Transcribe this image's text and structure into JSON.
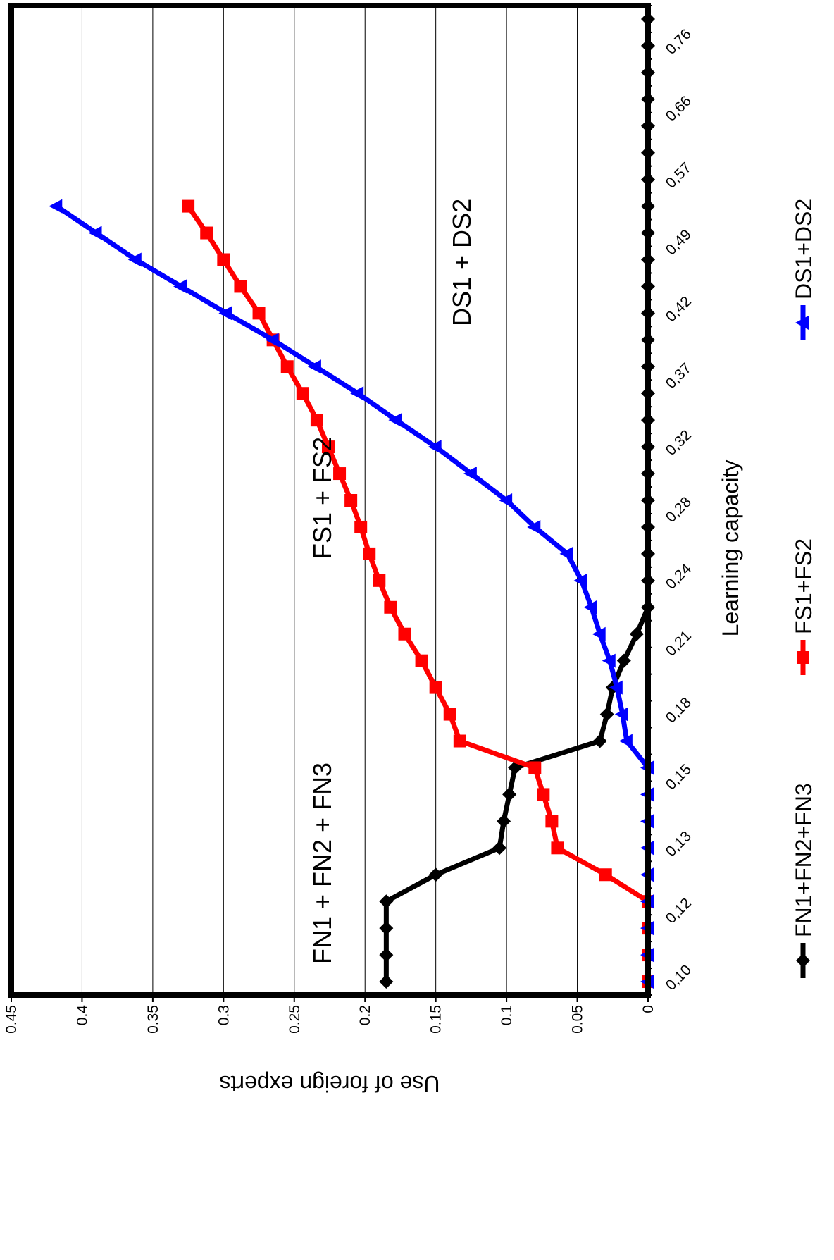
{
  "chart_data": {
    "type": "line",
    "title": "",
    "xlabel": "Learning capacity",
    "ylabel": "Use of foreign experts",
    "ylim": [
      0,
      0.45
    ],
    "yticks": [
      "0",
      "0.05",
      "0.1",
      "0.15",
      "0.2",
      "0.25",
      "0.3",
      "0.35",
      "0.4",
      "0.45"
    ],
    "xtick_labels": [
      "0,10",
      "0,12",
      "0,13",
      "0,15",
      "0,18",
      "0,21",
      "0,24",
      "0,28",
      "0,32",
      "0,37",
      "0,42",
      "0,49",
      "0,57",
      "0,66",
      "0,76"
    ],
    "grid": "horizontal",
    "legend_position": "bottom",
    "x_count": 37,
    "series": [
      {
        "name": "FN1+FN2+FN3",
        "color": "#000000",
        "marker": "diamond",
        "values": [
          0.185,
          0.185,
          0.185,
          0.185,
          0.15,
          0.105,
          0.102,
          0.098,
          0.094,
          0.034,
          0.029,
          0.025,
          0.017,
          0.008,
          0,
          0,
          0,
          0,
          0,
          0,
          0,
          0,
          0,
          0,
          0,
          0,
          0,
          0,
          0,
          0,
          0,
          0,
          0,
          0,
          0,
          0,
          0
        ]
      },
      {
        "name": "FS1+FS2",
        "color": "#ff0000",
        "marker": "square",
        "values": [
          0,
          0,
          0,
          0,
          0.03,
          0.064,
          0.068,
          0.074,
          0.08,
          0.133,
          0.14,
          0.15,
          0.16,
          0.172,
          0.182,
          0.19,
          0.197,
          0.203,
          0.21,
          0.218,
          0.226,
          0.234,
          0.244,
          0.255,
          0.265,
          0.275,
          0.288,
          0.3,
          0.312,
          0.325
        ]
      },
      {
        "name": "DS1+DS2",
        "color": "#0000ff",
        "marker": "triangle",
        "values": [
          0,
          0,
          0,
          0,
          0,
          0,
          0,
          0,
          0,
          0.015,
          0.018,
          0.022,
          0.027,
          0.034,
          0.04,
          0.047,
          0.057,
          0.08,
          0.1,
          0.125,
          0.15,
          0.178,
          0.205,
          0.235,
          0.265,
          0.298,
          0.33,
          0.362,
          0.39,
          0.418
        ]
      }
    ],
    "annotations": [
      "FN1 + FN2 + FN3",
      "FS1 + FS2",
      "DS1 + DS2"
    ]
  }
}
